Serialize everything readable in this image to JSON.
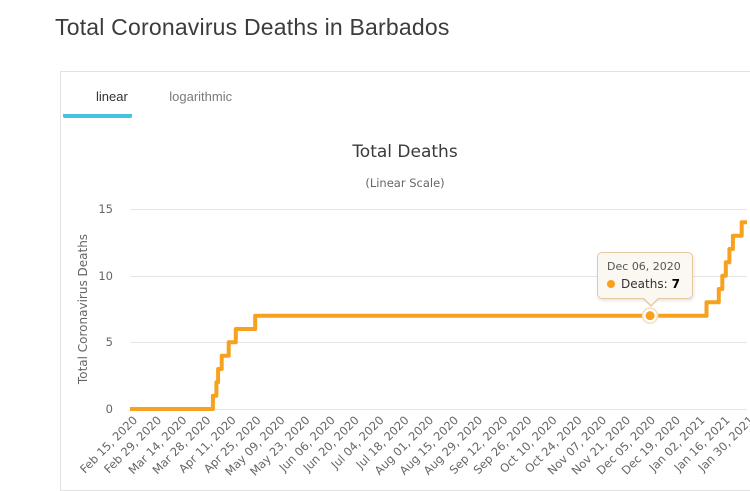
{
  "header": {
    "title": "Total Coronavirus Deaths in Barbados"
  },
  "tabs": [
    {
      "label": "linear",
      "active": true
    },
    {
      "label": "logarithmic",
      "active": false
    }
  ],
  "colors": {
    "tab_accent": "#45c2e0",
    "grid": "#e6e6e6",
    "axis_text": "#666666",
    "tooltip_bg": "#fbf7f1",
    "tooltip_border": "#e8c89e"
  },
  "chart_data": {
    "type": "line",
    "title": "Total Deaths",
    "subtitle": "(Linear Scale)",
    "ylabel": "Total Coronavirus Deaths",
    "ylim": [
      0,
      15
    ],
    "y_ticks": [
      0,
      5,
      10,
      15
    ],
    "grid": true,
    "legend": "none",
    "x_range": [
      "Feb 15, 2020",
      "Jan 30, 2021"
    ],
    "x_tick_labels": [
      "Feb 15, 2020",
      "Feb 29, 2020",
      "Mar 14, 2020",
      "Mar 28, 2020",
      "Apr 11, 2020",
      "Apr 25, 2020",
      "May 09, 2020",
      "May 23, 2020",
      "Jun 06, 2020",
      "Jun 20, 2020",
      "Jul 04, 2020",
      "Jul 18, 2020",
      "Aug 01, 2020",
      "Aug 15, 2020",
      "Aug 29, 2020",
      "Sep 12, 2020",
      "Sep 26, 2020",
      "Oct 10, 2020",
      "Oct 24, 2020",
      "Nov 07, 2020",
      "Nov 21, 2020",
      "Dec 05, 2020",
      "Dec 19, 2020",
      "Jan 02, 2021",
      "Jan 16, 2021",
      "Jan 30, 2021"
    ],
    "series": [
      {
        "name": "Deaths",
        "color": "#f7a11f",
        "step": true,
        "points": [
          {
            "date": "Feb 15, 2020",
            "value": 0
          },
          {
            "date": "Apr 02, 2020",
            "value": 1
          },
          {
            "date": "Apr 04, 2020",
            "value": 2
          },
          {
            "date": "Apr 05, 2020",
            "value": 3
          },
          {
            "date": "Apr 07, 2020",
            "value": 4
          },
          {
            "date": "Apr 11, 2020",
            "value": 5
          },
          {
            "date": "Apr 15, 2020",
            "value": 6
          },
          {
            "date": "Apr 26, 2020",
            "value": 7
          },
          {
            "date": "Dec 06, 2020",
            "value": 7
          },
          {
            "date": "Jan 07, 2021",
            "value": 8
          },
          {
            "date": "Jan 14, 2021",
            "value": 9
          },
          {
            "date": "Jan 16, 2021",
            "value": 10
          },
          {
            "date": "Jan 18, 2021",
            "value": 11
          },
          {
            "date": "Jan 20, 2021",
            "value": 12
          },
          {
            "date": "Jan 22, 2021",
            "value": 13
          },
          {
            "date": "Jan 27, 2021",
            "value": 14
          },
          {
            "date": "Jan 30, 2021",
            "value": 14
          }
        ]
      }
    ],
    "tooltip": {
      "date": "Dec 06, 2020",
      "series_label": "Deaths:",
      "value": 7,
      "point": {
        "date": "Dec 06, 2020",
        "value": 7
      }
    }
  }
}
